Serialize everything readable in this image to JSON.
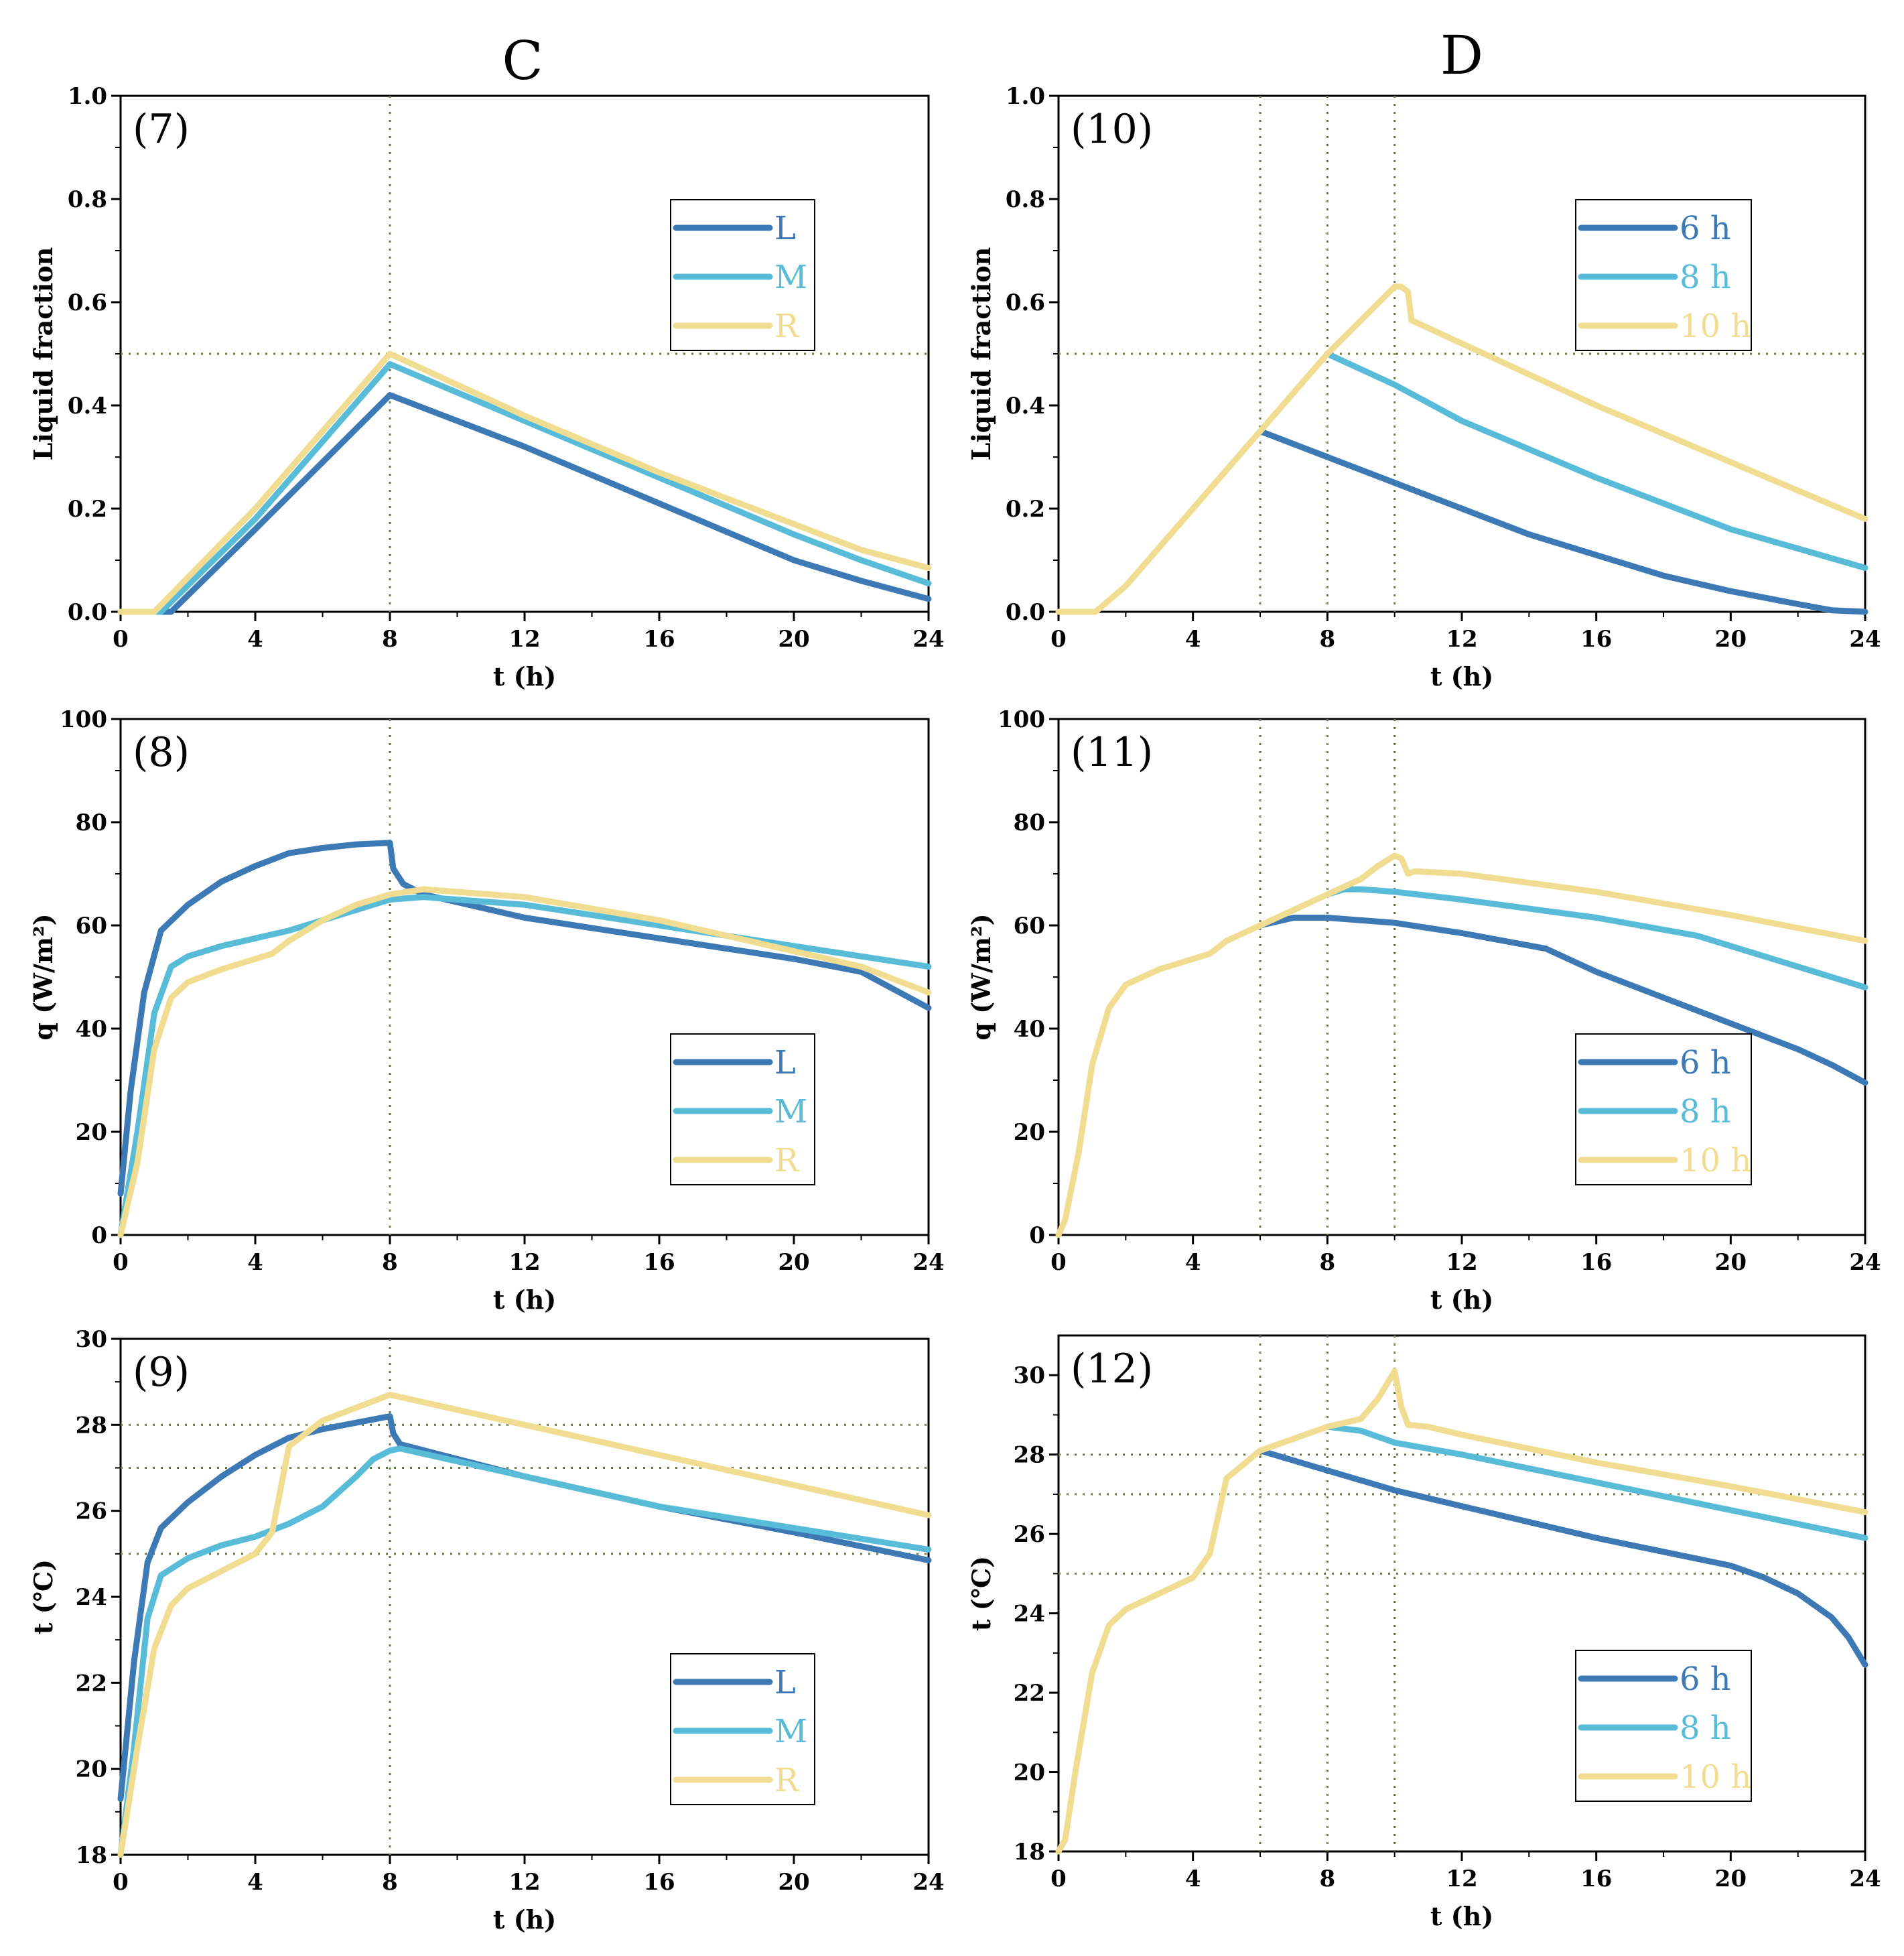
{
  "column_titles": [
    "C",
    "D"
  ],
  "colors": {
    "L": "#3d7ab5",
    "M": "#58bcd8",
    "R": "#f0dd92",
    "guide": "#6b7a4e",
    "axis": "#000000"
  },
  "chart_data": [
    {
      "id": "p7",
      "tag": "(7)",
      "type": "line",
      "xlabel": "t (h)",
      "ylabel": "Liquid fraction",
      "xlim": [
        0,
        24
      ],
      "ylim": [
        0,
        1.0
      ],
      "xticks": [
        "0",
        "4",
        "8",
        "12",
        "16",
        "20",
        "24"
      ],
      "xtick_values": [
        0,
        4,
        8,
        12,
        16,
        20,
        24
      ],
      "yticks": [
        "0.0",
        "0.2",
        "0.4",
        "0.6",
        "0.8",
        "1.0"
      ],
      "ytick_values": [
        0,
        0.2,
        0.4,
        0.6,
        0.8,
        1.0
      ],
      "vlines": [
        8
      ],
      "hlines": [
        0.5
      ],
      "legend_position": "upper-right",
      "series": [
        {
          "name": "L",
          "color": "#3d7ab5",
          "x": [
            0,
            1.5,
            4,
            6,
            8,
            12,
            16,
            20,
            22,
            24
          ],
          "y": [
            0,
            0,
            0.16,
            0.29,
            0.42,
            0.32,
            0.21,
            0.1,
            0.06,
            0.025
          ]
        },
        {
          "name": "M",
          "color": "#58bcd8",
          "x": [
            0,
            1.2,
            4,
            6,
            8,
            12,
            16,
            20,
            22,
            24
          ],
          "y": [
            0,
            0,
            0.18,
            0.33,
            0.48,
            0.37,
            0.26,
            0.15,
            0.1,
            0.055
          ]
        },
        {
          "name": "R",
          "color": "#f0dd92",
          "x": [
            0,
            1.0,
            4,
            6,
            8,
            12,
            16,
            20,
            22,
            24
          ],
          "y": [
            0,
            0,
            0.2,
            0.35,
            0.5,
            0.38,
            0.27,
            0.17,
            0.12,
            0.085
          ]
        }
      ]
    },
    {
      "id": "p10",
      "tag": "(10)",
      "type": "line",
      "xlabel": "t (h)",
      "ylabel": "Liquid fraction",
      "xlim": [
        0,
        24
      ],
      "ylim": [
        0,
        1.0
      ],
      "xticks": [
        "0",
        "4",
        "8",
        "12",
        "16",
        "20",
        "24"
      ],
      "xtick_values": [
        0,
        4,
        8,
        12,
        16,
        20,
        24
      ],
      "yticks": [
        "0.0",
        "0.2",
        "0.4",
        "0.6",
        "0.8",
        "1.0"
      ],
      "ytick_values": [
        0,
        0.2,
        0.4,
        0.6,
        0.8,
        1.0
      ],
      "vlines": [
        6,
        8,
        10
      ],
      "hlines": [
        0.5
      ],
      "legend_position": "upper-right",
      "series": [
        {
          "name": "6 h",
          "color": "#3d7ab5",
          "x": [
            6,
            8,
            10,
            12,
            14,
            16,
            18,
            20,
            22,
            23,
            24
          ],
          "y": [
            0.35,
            0.3,
            0.25,
            0.2,
            0.15,
            0.11,
            0.07,
            0.04,
            0.015,
            0.003,
            0
          ]
        },
        {
          "name": "8 h",
          "color": "#58bcd8",
          "x": [
            8,
            10,
            12,
            16,
            20,
            24
          ],
          "y": [
            0.5,
            0.44,
            0.37,
            0.26,
            0.16,
            0.085
          ]
        },
        {
          "name": "10 h",
          "color": "#f0dd92",
          "x": [
            0,
            1.1,
            2,
            4,
            6,
            8,
            10,
            10.2,
            10.4,
            10.5,
            12,
            16,
            20,
            24
          ],
          "y": [
            0,
            0,
            0.05,
            0.2,
            0.35,
            0.5,
            0.63,
            0.63,
            0.62,
            0.565,
            0.52,
            0.4,
            0.29,
            0.18
          ]
        }
      ]
    },
    {
      "id": "p8",
      "tag": "(8)",
      "type": "line",
      "xlabel": "t (h)",
      "ylabel": "q (W/m²)",
      "xlim": [
        0,
        24
      ],
      "ylim": [
        0,
        100
      ],
      "xticks": [
        "0",
        "4",
        "8",
        "12",
        "16",
        "20",
        "24"
      ],
      "xtick_values": [
        0,
        4,
        8,
        12,
        16,
        20,
        24
      ],
      "yticks": [
        "0",
        "20",
        "40",
        "60",
        "80",
        "100"
      ],
      "ytick_values": [
        0,
        20,
        40,
        60,
        80,
        100
      ],
      "vlines": [
        8
      ],
      "hlines": [],
      "legend_position": "lower-right",
      "series": [
        {
          "name": "L",
          "color": "#3d7ab5",
          "x": [
            0,
            0.3,
            0.7,
            1.2,
            2,
            3,
            4,
            5,
            6,
            7,
            8,
            8.1,
            8.4,
            9,
            12,
            16,
            20,
            22,
            24
          ],
          "y": [
            8,
            28,
            47,
            59,
            64,
            68.5,
            71.5,
            74,
            75,
            75.7,
            76,
            71,
            68,
            66,
            61.5,
            57.5,
            53.5,
            51,
            44
          ]
        },
        {
          "name": "M",
          "color": "#58bcd8",
          "x": [
            0,
            0.5,
            1.0,
            1.5,
            2,
            3,
            4,
            5,
            6,
            7,
            8,
            9,
            12,
            16,
            20,
            24
          ],
          "y": [
            0,
            20,
            43,
            52,
            54,
            56,
            57.5,
            59,
            61,
            63,
            65,
            65.5,
            64,
            60,
            56,
            52
          ]
        },
        {
          "name": "R",
          "color": "#f0dd92",
          "x": [
            0,
            0.5,
            1.0,
            1.5,
            2,
            3,
            4.5,
            5,
            6,
            7,
            8,
            9,
            12,
            16,
            20,
            22,
            24
          ],
          "y": [
            0,
            14,
            36,
            46,
            49,
            51.5,
            54.5,
            57,
            61,
            64,
            66,
            67,
            65.5,
            61,
            55,
            52,
            47
          ]
        }
      ]
    },
    {
      "id": "p11",
      "tag": "(11)",
      "type": "line",
      "xlabel": "t (h)",
      "ylabel": "q (W/m²)",
      "xlim": [
        0,
        24
      ],
      "ylim": [
        0,
        100
      ],
      "xticks": [
        "0",
        "4",
        "8",
        "12",
        "16",
        "20",
        "24"
      ],
      "xtick_values": [
        0,
        4,
        8,
        12,
        16,
        20,
        24
      ],
      "yticks": [
        "0",
        "20",
        "40",
        "60",
        "80",
        "100"
      ],
      "ytick_values": [
        0,
        20,
        40,
        60,
        80,
        100
      ],
      "vlines": [
        6,
        8,
        10
      ],
      "hlines": [],
      "legend_position": "lower-right",
      "series": [
        {
          "name": "6 h",
          "color": "#3d7ab5",
          "x": [
            6,
            7,
            8,
            10,
            12,
            14.5,
            16,
            18,
            20,
            22,
            23,
            24
          ],
          "y": [
            60,
            61.5,
            61.5,
            60.5,
            58.5,
            55.5,
            51,
            46,
            41,
            36,
            33,
            29.5
          ]
        },
        {
          "name": "8 h",
          "color": "#58bcd8",
          "x": [
            8,
            8.5,
            9,
            10,
            12,
            16,
            19,
            21,
            24
          ],
          "y": [
            66,
            67,
            67,
            66.5,
            65,
            61.5,
            58,
            54,
            48
          ]
        },
        {
          "name": "10 h",
          "color": "#f0dd92",
          "x": [
            0,
            0.2,
            0.6,
            1.0,
            1.5,
            2,
            3,
            4.5,
            5,
            6,
            7,
            8,
            9,
            9.5,
            10,
            10.2,
            10.4,
            10.6,
            12,
            16,
            20,
            24
          ],
          "y": [
            0,
            3,
            16,
            33,
            44,
            48.5,
            51.5,
            54.5,
            57,
            60,
            63,
            66,
            69,
            71.5,
            73.5,
            73,
            70,
            70.5,
            70,
            66.5,
            62,
            57
          ]
        }
      ]
    },
    {
      "id": "p9",
      "tag": "(9)",
      "type": "line",
      "xlabel": "t (h)",
      "ylabel": "t (℃)",
      "xlim": [
        0,
        24
      ],
      "ylim": [
        18,
        30
      ],
      "xticks": [
        "0",
        "4",
        "8",
        "12",
        "16",
        "20",
        "24"
      ],
      "xtick_values": [
        0,
        4,
        8,
        12,
        16,
        20,
        24
      ],
      "yticks": [
        "18",
        "20",
        "22",
        "24",
        "26",
        "28",
        "30"
      ],
      "ytick_values": [
        18,
        20,
        22,
        24,
        26,
        28,
        30
      ],
      "vlines": [
        8
      ],
      "hlines": [
        25,
        27,
        28
      ],
      "legend_position": "lower-right",
      "series": [
        {
          "name": "L",
          "color": "#3d7ab5",
          "x": [
            0,
            0.4,
            0.8,
            1.2,
            2,
            3,
            4,
            5,
            6,
            7,
            8,
            8.1,
            8.3,
            12,
            16,
            20,
            24
          ],
          "y": [
            19.3,
            22.5,
            24.8,
            25.6,
            26.2,
            26.8,
            27.3,
            27.7,
            27.9,
            28.05,
            28.2,
            27.8,
            27.55,
            26.8,
            26.1,
            25.5,
            24.85
          ]
        },
        {
          "name": "M",
          "color": "#58bcd8",
          "x": [
            0,
            0.4,
            0.8,
            1.2,
            2,
            3,
            4,
            5,
            6,
            7,
            7.5,
            8,
            8.3,
            12,
            16,
            20,
            24
          ],
          "y": [
            18,
            20.5,
            23.5,
            24.5,
            24.9,
            25.2,
            25.4,
            25.7,
            26.1,
            26.8,
            27.2,
            27.4,
            27.45,
            26.8,
            26.1,
            25.6,
            25.1
          ]
        },
        {
          "name": "R",
          "color": "#f0dd92",
          "x": [
            0,
            0.5,
            1.0,
            1.5,
            2,
            3,
            4,
            4.5,
            5,
            6,
            7,
            8,
            12,
            16,
            20,
            24
          ],
          "y": [
            18,
            20.5,
            22.8,
            23.8,
            24.2,
            24.6,
            25,
            25.5,
            27.5,
            28.1,
            28.4,
            28.7,
            28,
            27.3,
            26.6,
            25.9
          ]
        }
      ]
    },
    {
      "id": "p12",
      "tag": "(12)",
      "type": "line",
      "xlabel": "t (h)",
      "ylabel": "t (℃)",
      "xlim": [
        0,
        24
      ],
      "ylim": [
        18,
        31
      ],
      "xticks": [
        "0",
        "4",
        "8",
        "12",
        "16",
        "20",
        "24"
      ],
      "xtick_values": [
        0,
        4,
        8,
        12,
        16,
        20,
        24
      ],
      "yticks": [
        "18",
        "20",
        "22",
        "24",
        "26",
        "28",
        "30"
      ],
      "ytick_values": [
        18,
        20,
        22,
        24,
        26,
        28,
        30
      ],
      "vlines": [
        6,
        8,
        10
      ],
      "hlines": [
        25,
        27,
        28
      ],
      "legend_position": "lower-right",
      "series": [
        {
          "name": "6 h",
          "color": "#3d7ab5",
          "x": [
            6,
            8,
            10,
            12,
            14,
            16,
            18,
            20,
            21,
            22,
            23,
            23.5,
            24
          ],
          "y": [
            28.1,
            27.6,
            27.1,
            26.7,
            26.3,
            25.9,
            25.55,
            25.2,
            24.9,
            24.5,
            23.9,
            23.4,
            22.7
          ]
        },
        {
          "name": "8 h",
          "color": "#58bcd8",
          "x": [
            8,
            9,
            10,
            12,
            16,
            20,
            24
          ],
          "y": [
            28.7,
            28.6,
            28.3,
            28,
            27.3,
            26.6,
            25.9
          ]
        },
        {
          "name": "10 h",
          "color": "#f0dd92",
          "x": [
            0,
            0.2,
            0.5,
            1.0,
            1.5,
            2,
            3,
            4,
            4.5,
            5,
            6,
            7,
            8,
            9,
            9.5,
            10,
            10.2,
            10.4,
            11,
            12,
            16,
            20,
            24
          ],
          "y": [
            18,
            18.3,
            20,
            22.5,
            23.7,
            24.1,
            24.5,
            24.9,
            25.5,
            27.4,
            28.1,
            28.4,
            28.7,
            28.9,
            29.4,
            30.1,
            29.2,
            28.75,
            28.7,
            28.5,
            27.8,
            27.2,
            26.55
          ]
        }
      ]
    }
  ]
}
